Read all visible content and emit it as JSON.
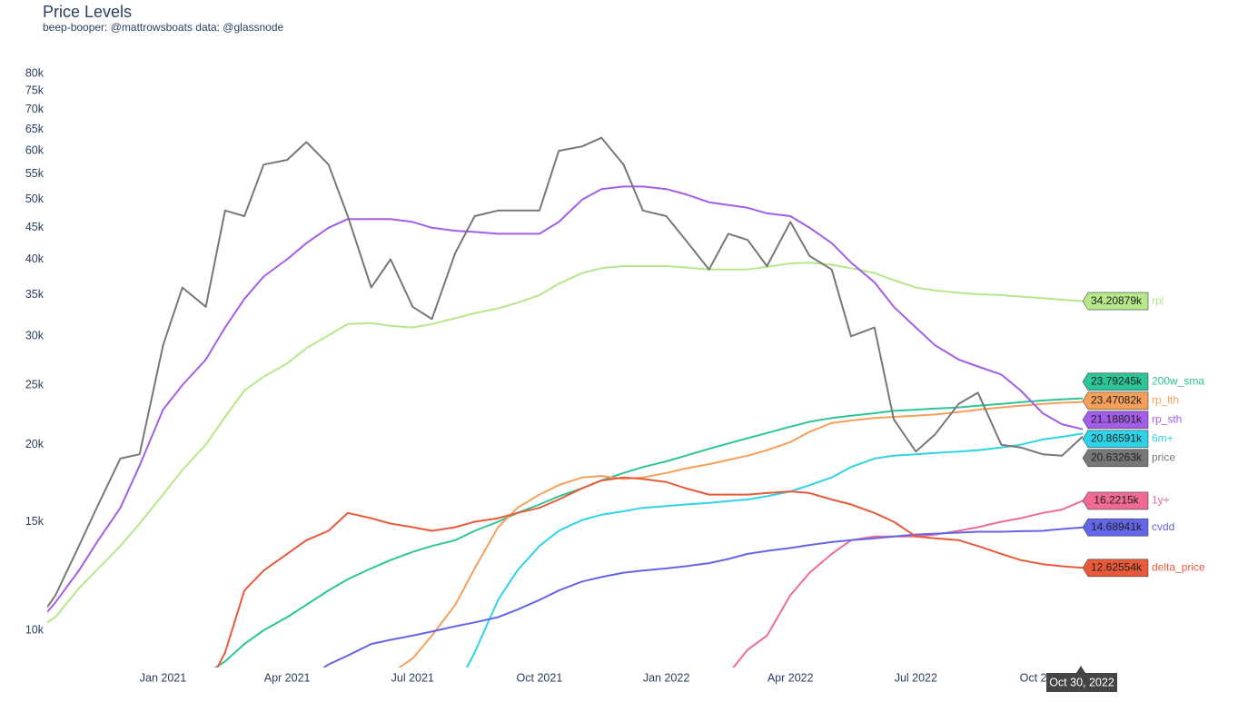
{
  "chart_data": {
    "type": "line",
    "title": "Price Levels",
    "subtitle": "beep-booper: @mattrowsboats data: @glassnode",
    "hover_x_label": "Oct 30, 2022",
    "log_y": true,
    "ylim": [
      8700,
      86000
    ],
    "yticks": [
      {
        "value": 10000,
        "label": "10k"
      },
      {
        "value": 15000,
        "label": "15k"
      },
      {
        "value": 20000,
        "label": "20k"
      },
      {
        "value": 25000,
        "label": "25k"
      },
      {
        "value": 30000,
        "label": "30k"
      },
      {
        "value": 35000,
        "label": "35k"
      },
      {
        "value": 40000,
        "label": "40k"
      },
      {
        "value": 45000,
        "label": "45k"
      },
      {
        "value": 50000,
        "label": "50k"
      },
      {
        "value": 55000,
        "label": "55k"
      },
      {
        "value": 60000,
        "label": "60k"
      },
      {
        "value": 65000,
        "label": "65k"
      },
      {
        "value": 70000,
        "label": "70k"
      },
      {
        "value": 75000,
        "label": "75k"
      },
      {
        "value": 80000,
        "label": "80k"
      }
    ],
    "xlim": [
      "2020-10-09",
      "2022-10-30"
    ],
    "xticks": [
      {
        "value": "2021-01-01",
        "label": "Jan 2021"
      },
      {
        "value": "2021-04-01",
        "label": "Apr 2021"
      },
      {
        "value": "2021-07-01",
        "label": "Jul 2021"
      },
      {
        "value": "2021-10-01",
        "label": "Oct 2021"
      },
      {
        "value": "2022-01-01",
        "label": "Jan 2022"
      },
      {
        "value": "2022-04-01",
        "label": "Apr 2022"
      },
      {
        "value": "2022-07-01",
        "label": "Jul 2022"
      },
      {
        "value": "2022-10-01",
        "label": "Oct 2022"
      }
    ],
    "x": [
      "2020-10-09",
      "2020-10-15",
      "2020-11-01",
      "2020-11-15",
      "2020-12-01",
      "2020-12-15",
      "2021-01-01",
      "2021-01-15",
      "2021-02-01",
      "2021-02-15",
      "2021-03-01",
      "2021-03-15",
      "2021-04-01",
      "2021-04-15",
      "2021-05-01",
      "2021-05-15",
      "2021-06-01",
      "2021-06-15",
      "2021-07-01",
      "2021-07-15",
      "2021-08-01",
      "2021-08-15",
      "2021-09-01",
      "2021-09-15",
      "2021-10-01",
      "2021-10-15",
      "2021-11-01",
      "2021-11-15",
      "2021-12-01",
      "2021-12-15",
      "2022-01-01",
      "2022-01-15",
      "2022-02-01",
      "2022-02-15",
      "2022-03-01",
      "2022-03-15",
      "2022-04-01",
      "2022-04-15",
      "2022-05-01",
      "2022-05-15",
      "2022-06-01",
      "2022-06-15",
      "2022-07-01",
      "2022-07-15",
      "2022-08-01",
      "2022-08-15",
      "2022-09-01",
      "2022-09-15",
      "2022-10-01",
      "2022-10-15",
      "2022-10-30"
    ],
    "series": [
      {
        "name": "rpl",
        "color": "#b5e889",
        "values": [
          10300,
          10500,
          11700,
          12600,
          13700,
          14900,
          16600,
          18200,
          20000,
          22200,
          24500,
          25800,
          27100,
          28700,
          30100,
          31400,
          31500,
          31200,
          31000,
          31400,
          32100,
          32700,
          33300,
          34000,
          35000,
          36500,
          38000,
          38700,
          39000,
          39000,
          39000,
          38800,
          38500,
          38500,
          38500,
          38900,
          39400,
          39500,
          39200,
          38700,
          38000,
          37000,
          36000,
          35600,
          35300,
          35100,
          35000,
          34800,
          34600,
          34400,
          34208.79
        ],
        "value_labels": [
          null,
          null,
          null,
          null,
          null,
          null,
          null,
          null,
          null,
          null,
          null,
          null,
          null,
          null,
          null,
          null,
          null,
          null,
          null,
          null,
          null,
          null,
          null,
          null,
          null,
          null,
          null,
          null,
          null,
          null,
          null,
          null,
          null,
          null,
          null,
          null,
          null,
          null,
          null,
          null,
          null,
          null,
          null,
          null,
          null,
          null,
          null,
          null,
          null,
          null,
          "34.20879k"
        ]
      },
      {
        "name": "200w_sma",
        "color": "#2dc597",
        "values": [
          null,
          null,
          null,
          null,
          null,
          null,
          null,
          null,
          8500,
          8900,
          9500,
          10000,
          10500,
          11000,
          11600,
          12100,
          12600,
          13000,
          13400,
          13700,
          14000,
          14500,
          15000,
          15500,
          16000,
          16500,
          17000,
          17500,
          18000,
          18400,
          18800,
          19200,
          19700,
          20100,
          20500,
          20900,
          21400,
          21800,
          22100,
          22300,
          22500,
          22700,
          22800,
          22900,
          23000,
          23150,
          23300,
          23450,
          23600,
          23700,
          23792.45
        ],
        "value_labels": [
          null,
          null,
          null,
          null,
          null,
          null,
          null,
          null,
          null,
          null,
          null,
          null,
          null,
          null,
          null,
          null,
          null,
          null,
          null,
          null,
          null,
          null,
          null,
          null,
          null,
          null,
          null,
          null,
          null,
          null,
          null,
          null,
          null,
          null,
          null,
          null,
          null,
          null,
          null,
          null,
          null,
          null,
          null,
          null,
          null,
          null,
          null,
          null,
          null,
          null,
          "23.79245k"
        ]
      },
      {
        "name": "rp_lth",
        "color": "#f5a05a",
        "values": [
          null,
          null,
          null,
          null,
          null,
          null,
          null,
          null,
          null,
          null,
          null,
          null,
          null,
          null,
          null,
          null,
          null,
          8500,
          9000,
          9800,
          11000,
          12600,
          14700,
          15800,
          16600,
          17200,
          17700,
          17800,
          17600,
          17700,
          18000,
          18300,
          18600,
          18900,
          19200,
          19600,
          20200,
          21000,
          21700,
          21900,
          22100,
          22200,
          22300,
          22400,
          22600,
          22800,
          23000,
          23150,
          23300,
          23400,
          23470.82
        ],
        "value_labels": [
          null,
          null,
          null,
          null,
          null,
          null,
          null,
          null,
          null,
          null,
          null,
          null,
          null,
          null,
          null,
          null,
          null,
          null,
          null,
          null,
          null,
          null,
          null,
          null,
          null,
          null,
          null,
          null,
          null,
          null,
          null,
          null,
          null,
          null,
          null,
          null,
          null,
          null,
          null,
          null,
          null,
          null,
          null,
          null,
          null,
          null,
          null,
          null,
          null,
          null,
          "23.47082k"
        ]
      },
      {
        "name": "rp_sth",
        "color": "#a25ee8",
        "values": [
          10700,
          11100,
          12500,
          14000,
          15800,
          18500,
          22800,
          25000,
          27500,
          31000,
          34500,
          37500,
          40000,
          42500,
          45000,
          46500,
          46500,
          46500,
          46000,
          45000,
          44500,
          44300,
          44000,
          44000,
          44000,
          46000,
          50000,
          52000,
          52500,
          52500,
          52000,
          51000,
          49500,
          49000,
          48500,
          47500,
          47000,
          45000,
          42500,
          39500,
          36700,
          33500,
          31000,
          29000,
          27500,
          26800,
          26000,
          24500,
          22500,
          21600,
          21188.01
        ],
        "value_labels": [
          null,
          null,
          null,
          null,
          null,
          null,
          null,
          null,
          null,
          null,
          null,
          null,
          null,
          null,
          null,
          null,
          null,
          null,
          null,
          null,
          null,
          null,
          null,
          null,
          null,
          null,
          null,
          null,
          null,
          null,
          null,
          null,
          null,
          null,
          null,
          null,
          null,
          null,
          null,
          null,
          null,
          null,
          null,
          null,
          null,
          null,
          null,
          null,
          null,
          null,
          "21.18801k"
        ]
      },
      {
        "name": "6m+",
        "color": "#2fd3e8",
        "values": [
          null,
          null,
          null,
          null,
          null,
          null,
          null,
          null,
          null,
          null,
          null,
          null,
          null,
          null,
          null,
          null,
          null,
          null,
          null,
          null,
          8000,
          9200,
          11200,
          12500,
          13700,
          14500,
          15100,
          15400,
          15600,
          15800,
          15900,
          16000,
          16100,
          16200,
          16300,
          16500,
          16800,
          17200,
          17700,
          18400,
          19000,
          19200,
          19300,
          19400,
          19500,
          19600,
          19800,
          20000,
          20400,
          20600,
          20865.91
        ],
        "value_labels": [
          null,
          null,
          null,
          null,
          null,
          null,
          null,
          null,
          null,
          null,
          null,
          null,
          null,
          null,
          null,
          null,
          null,
          null,
          null,
          null,
          null,
          null,
          null,
          null,
          null,
          null,
          null,
          null,
          null,
          null,
          null,
          null,
          null,
          null,
          null,
          null,
          null,
          null,
          null,
          null,
          null,
          null,
          null,
          null,
          null,
          null,
          null,
          null,
          null,
          null,
          "20.86591k"
        ]
      },
      {
        "name": "1y+",
        "color": "#ef6b93",
        "values": [
          null,
          null,
          null,
          null,
          null,
          null,
          null,
          null,
          null,
          null,
          null,
          null,
          null,
          null,
          null,
          null,
          null,
          null,
          null,
          null,
          null,
          null,
          null,
          null,
          null,
          null,
          null,
          null,
          null,
          null,
          null,
          null,
          null,
          8500,
          9300,
          9800,
          11400,
          12400,
          13300,
          14000,
          14200,
          14200,
          14200,
          14300,
          14500,
          14700,
          15000,
          15200,
          15500,
          15700,
          16221.5
        ],
        "value_labels": [
          null,
          null,
          null,
          null,
          null,
          null,
          null,
          null,
          null,
          null,
          null,
          null,
          null,
          null,
          null,
          null,
          null,
          null,
          null,
          null,
          null,
          null,
          null,
          null,
          null,
          null,
          null,
          null,
          null,
          null,
          null,
          null,
          null,
          null,
          null,
          null,
          null,
          null,
          null,
          null,
          null,
          null,
          null,
          null,
          null,
          null,
          null,
          null,
          null,
          null,
          "16.2215k"
        ]
      },
      {
        "name": "cvdd",
        "color": "#6366e8",
        "values": [
          null,
          null,
          null,
          null,
          null,
          null,
          null,
          null,
          null,
          null,
          null,
          null,
          null,
          8300,
          8800,
          9100,
          9500,
          9650,
          9800,
          9950,
          10150,
          10300,
          10500,
          10800,
          11200,
          11600,
          12000,
          12200,
          12400,
          12500,
          12600,
          12700,
          12850,
          13050,
          13300,
          13450,
          13600,
          13750,
          13900,
          14000,
          14100,
          14200,
          14300,
          14350,
          14400,
          14450,
          14450,
          14480,
          14500,
          14600,
          14689.41
        ],
        "value_labels": [
          null,
          null,
          null,
          null,
          null,
          null,
          null,
          null,
          null,
          null,
          null,
          null,
          null,
          null,
          null,
          null,
          null,
          null,
          null,
          null,
          null,
          null,
          null,
          null,
          null,
          null,
          null,
          null,
          null,
          null,
          null,
          null,
          null,
          null,
          null,
          null,
          null,
          null,
          null,
          null,
          null,
          null,
          null,
          null,
          null,
          null,
          null,
          null,
          null,
          null,
          "14.68941k"
        ]
      },
      {
        "name": "delta_price",
        "color": "#e85a3a",
        "values": [
          null,
          null,
          null,
          null,
          null,
          null,
          null,
          null,
          8000,
          9200,
          11600,
          12500,
          13300,
          14000,
          14500,
          15500,
          15200,
          14900,
          14700,
          14500,
          14700,
          15000,
          15200,
          15500,
          15800,
          16300,
          17000,
          17500,
          17700,
          17600,
          17400,
          17000,
          16600,
          16600,
          16600,
          16700,
          16800,
          16700,
          16300,
          16000,
          15500,
          15000,
          14200,
          14100,
          14000,
          13700,
          13300,
          13000,
          12800,
          12700,
          12625.54
        ],
        "value_labels": [
          null,
          null,
          null,
          null,
          null,
          null,
          null,
          null,
          null,
          null,
          null,
          null,
          null,
          null,
          null,
          null,
          null,
          null,
          null,
          null,
          null,
          null,
          null,
          null,
          null,
          null,
          null,
          null,
          null,
          null,
          null,
          null,
          null,
          null,
          null,
          null,
          null,
          null,
          null,
          null,
          null,
          null,
          null,
          null,
          null,
          null,
          null,
          null,
          null,
          null,
          "12.62554k"
        ]
      },
      {
        "name": "price",
        "color": "#777777",
        "values": [
          10900,
          11400,
          13700,
          16000,
          19000,
          19300,
          29000,
          36000,
          33500,
          48000,
          47000,
          57000,
          58000,
          62000,
          57000,
          47000,
          36000,
          40000,
          33500,
          32000,
          41000,
          47000,
          48000,
          48000,
          48000,
          60000,
          61000,
          63000,
          57000,
          48000,
          47000,
          43000,
          38500,
          44000,
          43000,
          39000,
          46000,
          40500,
          38500,
          30000,
          31000,
          22000,
          19500,
          20800,
          23300,
          24300,
          20000,
          19800,
          19300,
          19200,
          20632.63
        ],
        "value_labels": [
          null,
          null,
          null,
          null,
          null,
          null,
          null,
          null,
          null,
          null,
          null,
          null,
          null,
          null,
          null,
          null,
          null,
          null,
          null,
          null,
          null,
          null,
          null,
          null,
          null,
          null,
          null,
          null,
          null,
          null,
          null,
          null,
          null,
          null,
          null,
          null,
          null,
          null,
          null,
          null,
          null,
          null,
          null,
          null,
          null,
          null,
          null,
          null,
          null,
          null,
          "20.63263k"
        ]
      }
    ]
  }
}
